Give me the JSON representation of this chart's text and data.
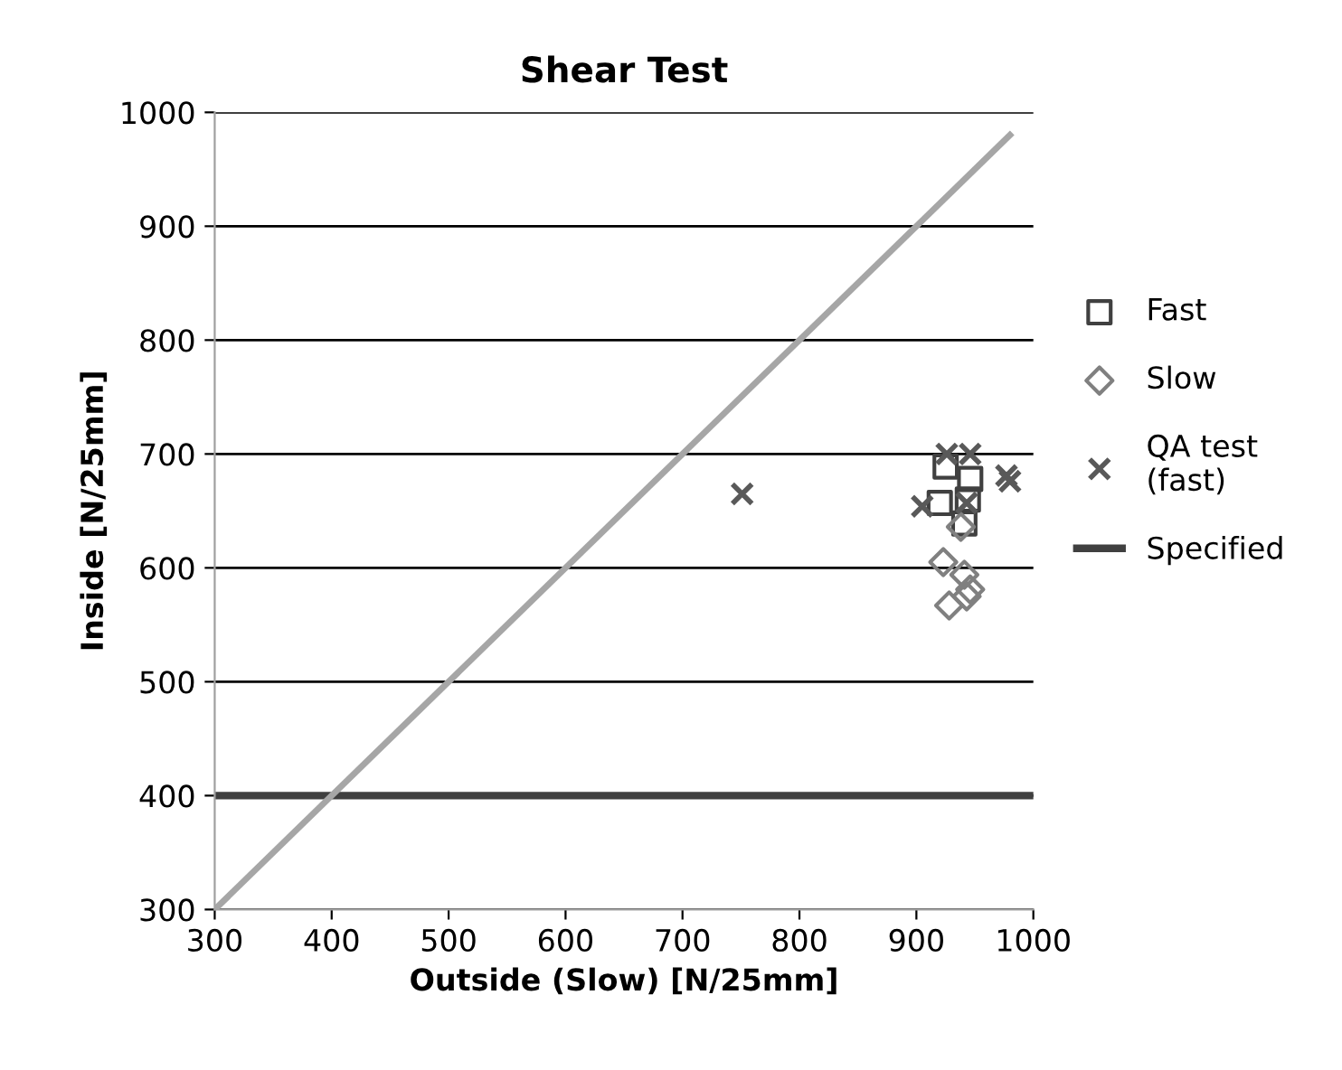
{
  "chart_data": {
    "type": "scatter",
    "title": "Shear Test",
    "xlabel": "Outside (Slow) [N/25mm]",
    "ylabel": "Inside [N/25mm]",
    "xlim": [
      300,
      1000
    ],
    "ylim": [
      300,
      1000
    ],
    "xticks": [
      300,
      400,
      500,
      600,
      700,
      800,
      900,
      1000
    ],
    "yticks": [
      300,
      400,
      500,
      600,
      700,
      800,
      900,
      1000
    ],
    "grid": "y",
    "legend": "right",
    "series": [
      {
        "name": "Fast",
        "color": "#404040",
        "marker": "square",
        "x": [
          925,
          946,
          920,
          944,
          941
        ],
        "values": [
          689,
          678,
          657,
          660,
          639
        ]
      },
      {
        "name": "Slow",
        "color": "#808080",
        "marker": "diamond",
        "x": [
          938,
          923,
          941,
          946,
          928,
          943
        ],
        "values": [
          636,
          605,
          594,
          581,
          567,
          575
        ]
      },
      {
        "name": "QA test\n(fast)",
        "color": "#595959",
        "marker": "cross",
        "x": [
          926,
          946,
          977,
          980,
          905,
          943,
          751
        ],
        "values": [
          700,
          700,
          681,
          676,
          654,
          657,
          665
        ]
      },
      {
        "type": "line",
        "color": "#a6a6a6",
        "marker": "none",
        "x": [
          300,
          980
        ],
        "values": [
          300,
          980
        ]
      }
    ],
    "ref_lines": [
      {
        "axis": "y",
        "value": 400,
        "label": "Specified",
        "color": "#404040",
        "line_style": "solid"
      }
    ]
  }
}
